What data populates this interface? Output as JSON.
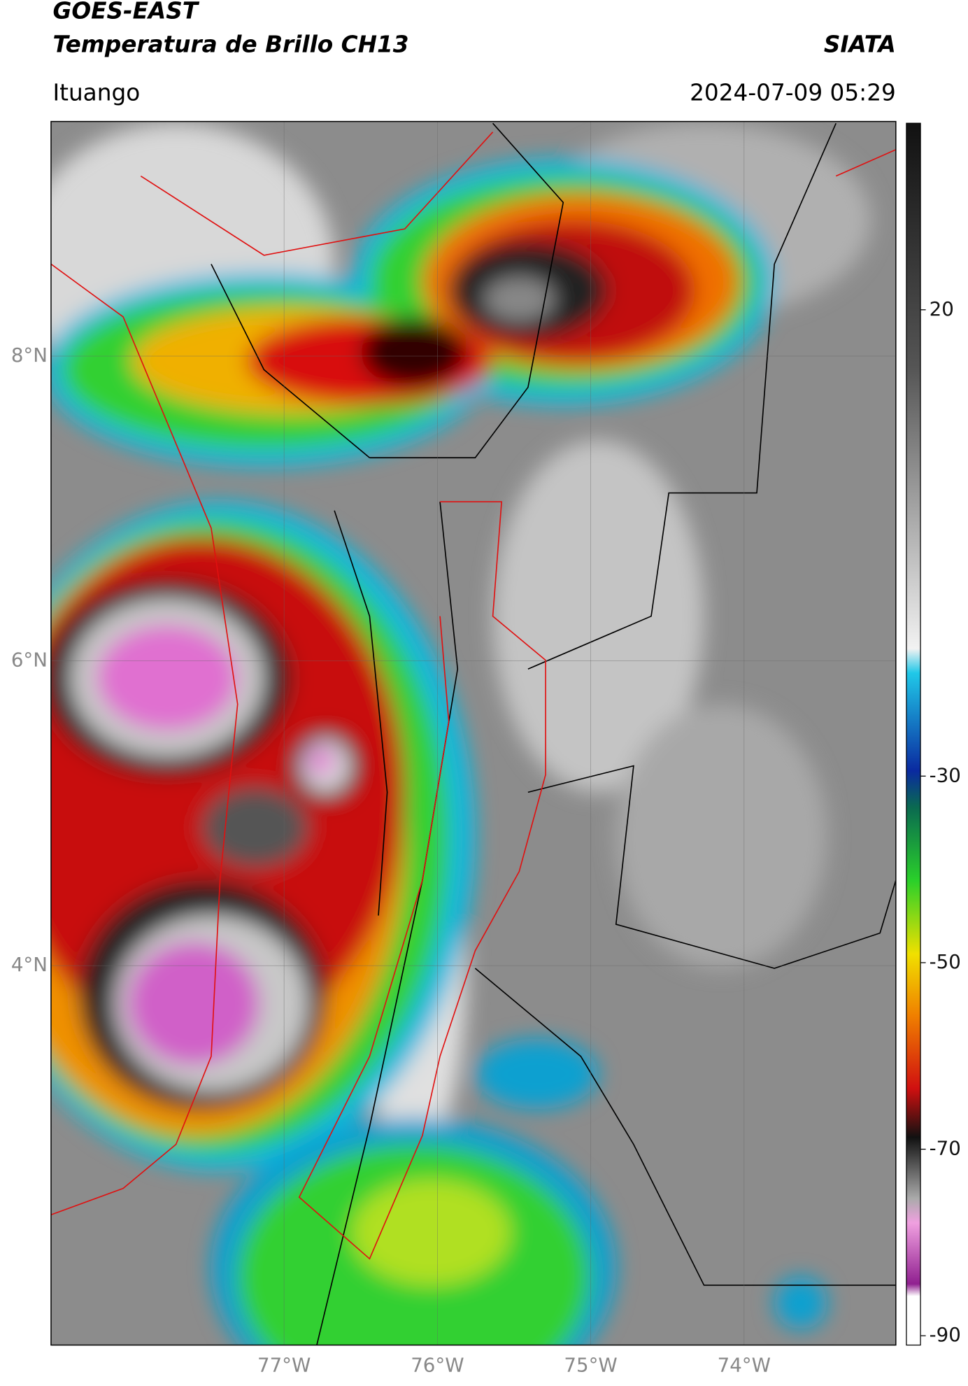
{
  "header": {
    "title": "GOES-EAST",
    "subtitle": "Temperatura de Brillo CH13",
    "source": "SIATA",
    "location": "Ituango",
    "datetime": "2024-07-09 05:29"
  },
  "map": {
    "xlim": [
      -78.52,
      -73.01
    ],
    "ylim": [
      1.51,
      9.54
    ],
    "xticks": [
      {
        "value": -77,
        "label": "77°W"
      },
      {
        "value": -76,
        "label": "76°W"
      },
      {
        "value": -75,
        "label": "75°W"
      },
      {
        "value": -74,
        "label": "74°W"
      }
    ],
    "yticks": [
      {
        "value": 4,
        "label": "4°N"
      },
      {
        "value": 6,
        "label": "6°N"
      },
      {
        "value": 8,
        "label": "8°N"
      }
    ]
  },
  "colorbar": {
    "lim": [
      -91,
      40
    ],
    "ticks": [
      -90,
      -70,
      -50,
      -30,
      20
    ]
  }
}
